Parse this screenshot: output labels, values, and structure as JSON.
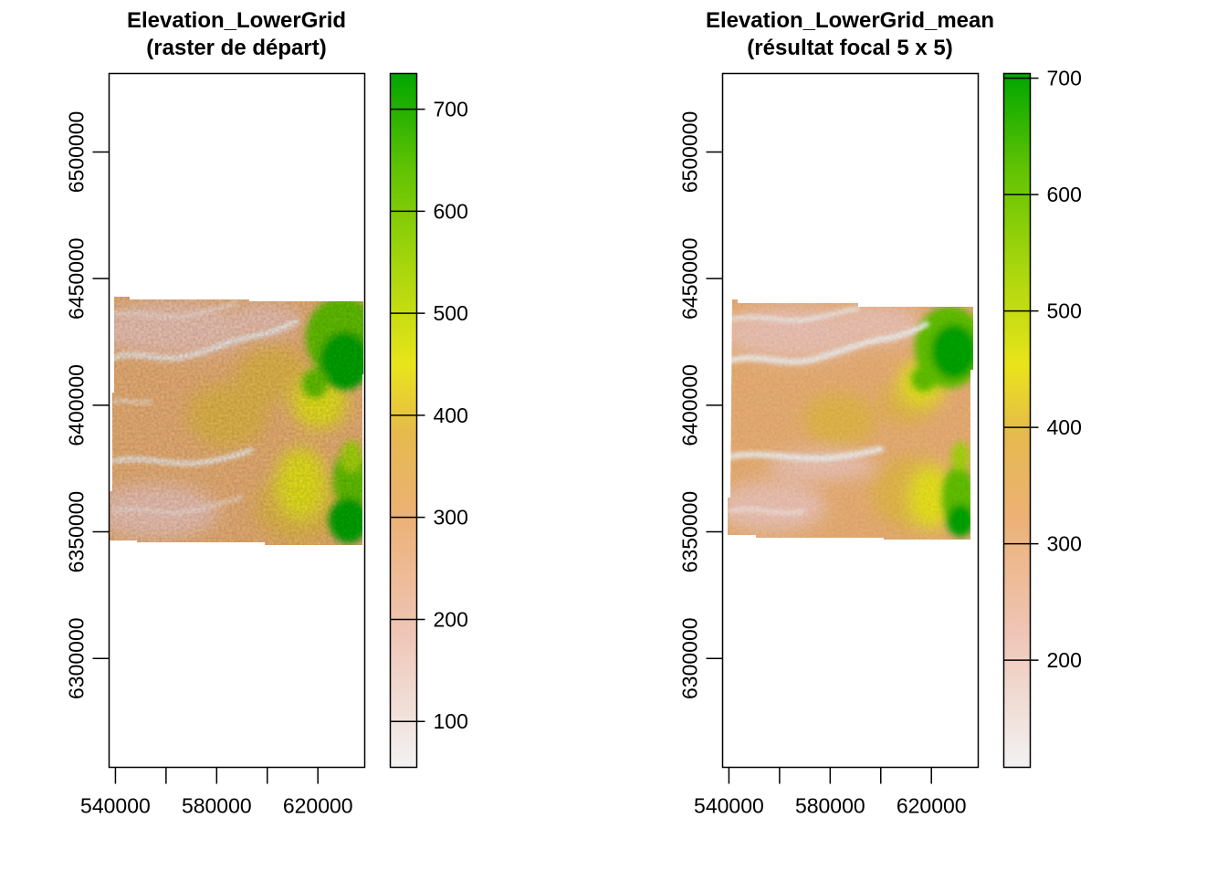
{
  "chart_data": [
    {
      "type": "heatmap",
      "title": "Elevation_LowerGrid",
      "subtitle": "(raster de départ)",
      "xlabel": "",
      "ylabel": "",
      "x_ticks": [
        540000,
        560000,
        580000,
        600000,
        620000
      ],
      "x_tick_labels": [
        "540000",
        "580000",
        "620000"
      ],
      "y_ticks": [
        6300000,
        6350000,
        6400000,
        6450000,
        6500000
      ],
      "y_tick_labels": [
        "6300000",
        "6350000",
        "6400000",
        "6450000",
        "6500000"
      ],
      "xlim": [
        537500,
        638500
      ],
      "ylim": [
        6257000,
        6531000
      ],
      "data_extent": {
        "x": [
          539000,
          637000
        ],
        "y": [
          6344000,
          6441000
        ]
      },
      "legend": {
        "position": "right",
        "min": 55,
        "max": 735,
        "ticks": [
          100,
          200,
          300,
          400,
          500,
          600,
          700
        ],
        "tick_labels": [
          "100",
          "200",
          "300",
          "400",
          "500",
          "600",
          "700"
        ]
      },
      "colors": [
        "#f2f2f2",
        "#efc4b4",
        "#ecb176",
        "#e6b94d",
        "#e9e41a",
        "#a8d60c",
        "#62c303",
        "#00a600"
      ]
    },
    {
      "type": "heatmap",
      "title": "Elevation_LowerGrid_mean",
      "subtitle": "(résultat focal 5 x 5)",
      "xlabel": "",
      "ylabel": "",
      "x_ticks": [
        540000,
        560000,
        580000,
        600000,
        620000
      ],
      "x_tick_labels": [
        "540000",
        "580000",
        "620000"
      ],
      "y_ticks": [
        6300000,
        6350000,
        6400000,
        6450000,
        6500000
      ],
      "y_tick_labels": [
        "6300000",
        "6350000",
        "6400000",
        "6450000",
        "6500000"
      ],
      "xlim": [
        537500,
        638500
      ],
      "ylim": [
        6257000,
        6531000
      ],
      "data_extent": {
        "x": [
          540000,
          635000
        ],
        "y": [
          6346000,
          6439000
        ]
      },
      "legend": {
        "position": "right",
        "min": 108,
        "max": 704,
        "ticks": [
          200,
          300,
          400,
          500,
          600,
          700
        ],
        "tick_labels": [
          "200",
          "300",
          "400",
          "500",
          "600",
          "700"
        ]
      },
      "colors": [
        "#f2f2f2",
        "#efc4b4",
        "#ecb176",
        "#e6b94d",
        "#e9e41a",
        "#a8d60c",
        "#62c303",
        "#00a600"
      ]
    }
  ]
}
